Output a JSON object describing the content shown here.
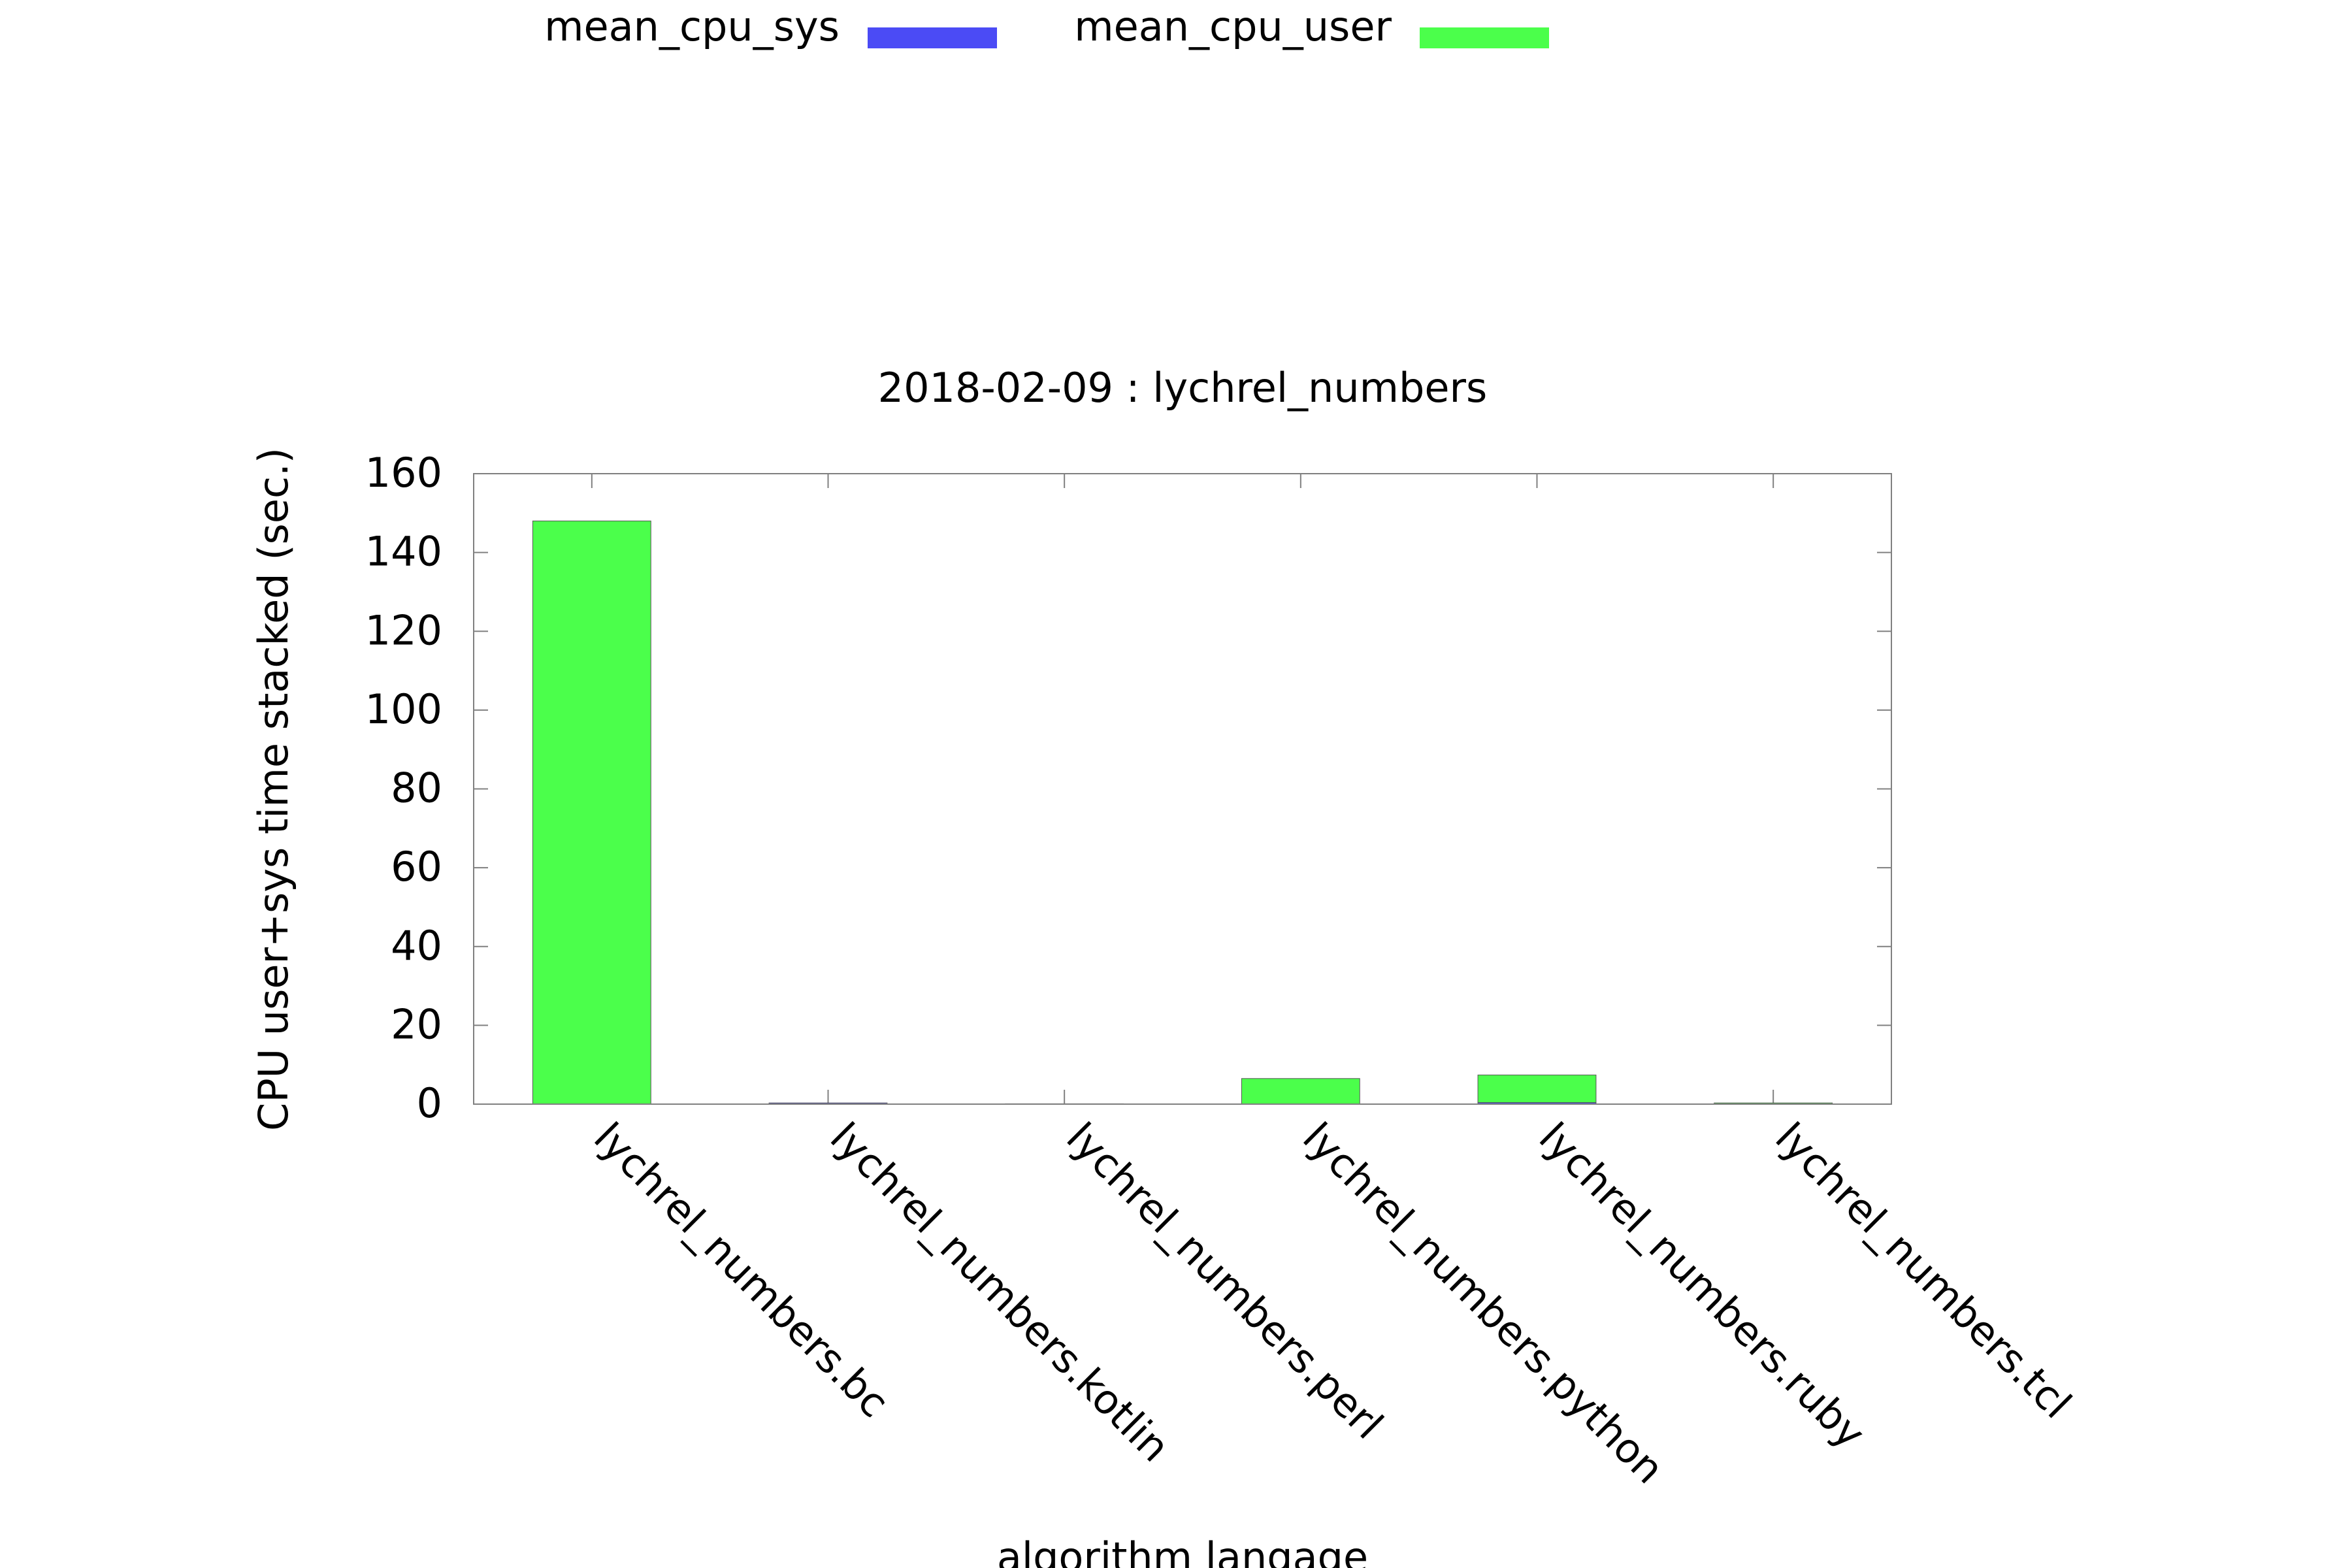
{
  "chart_data": {
    "type": "bar",
    "stacked": true,
    "title": "2018-02-09 : lychrel_numbers",
    "xlabel": "algorithm langage",
    "ylabel": "CPU user+sys time stacked (sec.)",
    "ylim": [
      0,
      160
    ],
    "yticks": [
      "0",
      "20",
      "40",
      "60",
      "80",
      "100",
      "120",
      "140",
      "160"
    ],
    "grid": false,
    "legend_position": "top",
    "categories": [
      "lychrel_numbers.bc",
      "lychrel_numbers.kotlin",
      "lychrel_numbers.perl",
      "lychrel_numbers.python",
      "lychrel_numbers.ruby",
      "lychrel_numbers.tcl"
    ],
    "series": [
      {
        "name": "mean_cpu_sys",
        "color": "#4b4bf5",
        "values": [
          0.0,
          0.3,
          0.1,
          0.0,
          0.4,
          0.0
        ]
      },
      {
        "name": "mean_cpu_user",
        "color": "#4bff4b",
        "values": [
          148.0,
          0.0,
          0.0,
          6.5,
          7.0,
          0.3
        ]
      }
    ]
  }
}
